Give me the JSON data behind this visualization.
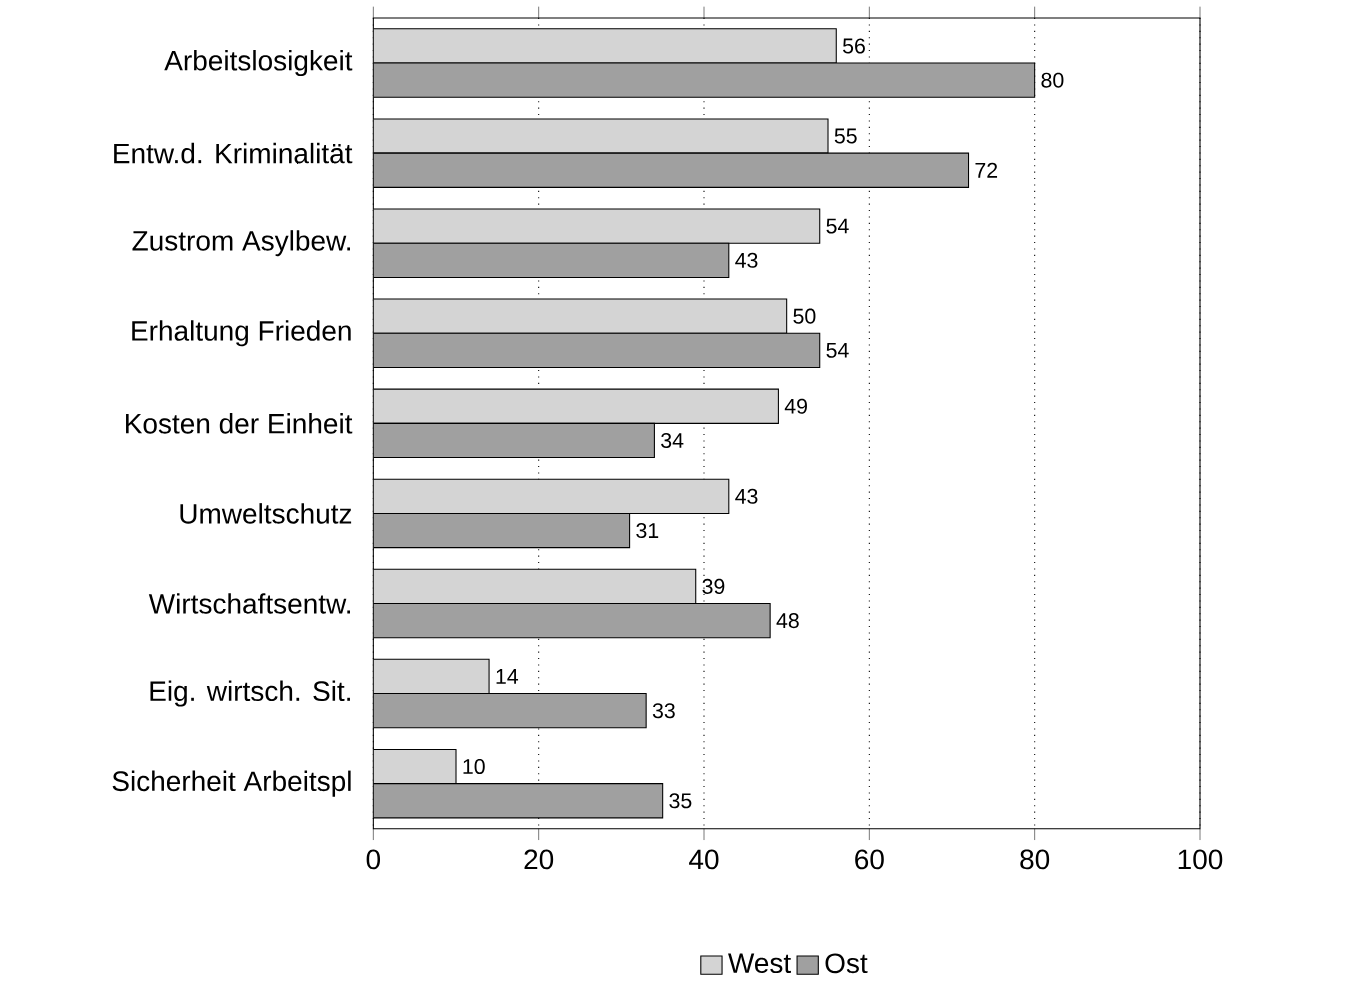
{
  "chart_data": {
    "type": "bar",
    "orientation": "horizontal",
    "categories": [
      "Arbeitslosigkeit",
      "Entw.d. Kriminalität",
      "Zustrom Asylbew.",
      "Erhaltung Frieden",
      "Kosten der Einheit",
      "Umweltschutz",
      "Wirtschaftsentw.",
      "Eig. wirtsch. Sit.",
      "Sicherheit Arbeitspl"
    ],
    "series": [
      {
        "name": "West",
        "color": "#d4d4d4",
        "values": [
          56,
          55,
          54,
          50,
          49,
          43,
          39,
          14,
          10
        ]
      },
      {
        "name": "Ost",
        "color": "#a0a0a0",
        "values": [
          80,
          72,
          43,
          54,
          34,
          31,
          48,
          33,
          35
        ]
      }
    ],
    "xlim": [
      0,
      100
    ],
    "xticks": [
      0,
      20,
      40,
      60,
      80,
      100
    ],
    "grid": "x",
    "legend": "bottom",
    "data_labels": true
  }
}
